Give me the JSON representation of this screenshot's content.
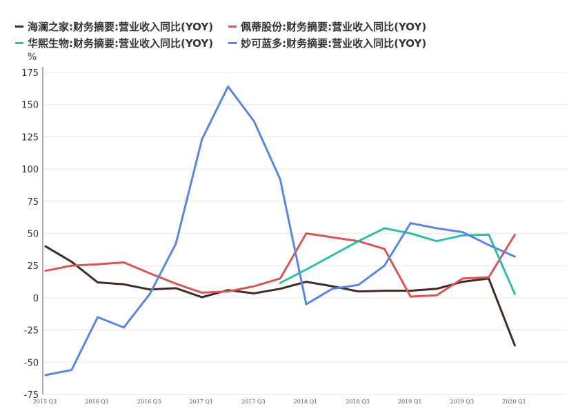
{
  "chart_data": {
    "type": "line",
    "unit": "%",
    "ylim": [
      -75,
      175
    ],
    "yticks": [
      "175",
      "150",
      "125",
      "100",
      "75",
      "50",
      "25",
      "0",
      "-25",
      "-50",
      "-75"
    ],
    "x_labels": [
      "2015 Q3",
      "2016 Q1",
      "2016 Q3",
      "2017 Q1",
      "2017 Q3",
      "2018 Q1",
      "2018 Q3",
      "2019 Q1",
      "2019 Q3",
      "2020 Q1"
    ],
    "x_quarters": [
      "2015 Q3",
      "2015 Q4",
      "2016 Q1",
      "2016 Q2",
      "2016 Q3",
      "2016 Q4",
      "2017 Q1",
      "2017 Q2",
      "2017 Q3",
      "2017 Q4",
      "2018 Q1",
      "2018 Q2",
      "2018 Q3",
      "2018 Q4",
      "2019 Q1",
      "2019 Q2",
      "2019 Q3",
      "2019 Q4",
      "2020 Q1"
    ],
    "grid": true,
    "legend_position": "top",
    "series": [
      {
        "name": "海澜之家:财务摘要:营业收入同比(YOY)",
        "color": "#3d2b24",
        "values": [
          40,
          28,
          12,
          10.5,
          6.5,
          7.5,
          0.5,
          6,
          3.5,
          7,
          12.5,
          9,
          5,
          5.5,
          5.5,
          7,
          12.5,
          15,
          -37
        ]
      },
      {
        "name": "佩蒂股份:财务摘要:营业收入同比(YOY)",
        "color": "#d95555",
        "values": [
          21,
          25,
          26,
          27.5,
          19,
          11,
          4,
          5,
          9,
          15,
          50,
          47,
          44,
          38,
          1,
          2,
          15,
          16,
          49
        ]
      },
      {
        "name": "华熙生物:财务摘要:营业收入同比(YOY)",
        "color": "#2ebfa4",
        "values": [
          null,
          null,
          null,
          null,
          null,
          null,
          null,
          null,
          null,
          11.5,
          22,
          33,
          44,
          54,
          50,
          44,
          48.5,
          49,
          3
        ]
      },
      {
        "name": "妙可蓝多:财务摘要:营业收入同比(YOY)",
        "color": "#5a86e0",
        "values": [
          -60,
          -56,
          -15,
          -23,
          3,
          42,
          123,
          164,
          137,
          92,
          -5,
          7,
          10,
          25,
          58,
          54,
          51,
          41,
          32
        ]
      }
    ]
  }
}
